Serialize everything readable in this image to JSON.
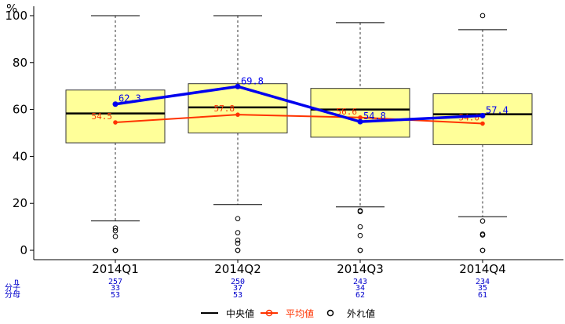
{
  "chart_data": {
    "type": "box",
    "y_unit": "%",
    "ylim": [
      -4,
      104
    ],
    "yticks": [
      0,
      20,
      40,
      60,
      80,
      100
    ],
    "categories": [
      "2014Q1",
      "2014Q2",
      "2014Q3",
      "2014Q4"
    ],
    "boxes": [
      {
        "whisker_low": 12.5,
        "q1": 45.8,
        "median": 58.3,
        "q3": 68.3,
        "whisker_high": 100,
        "outliers": [
          9.5,
          8.3,
          5.9,
          0,
          0,
          0
        ]
      },
      {
        "whisker_low": 19.5,
        "q1": 50.0,
        "median": 60.9,
        "q3": 71.0,
        "whisker_high": 100,
        "outliers": [
          13.5,
          7.5,
          4.3,
          3.0,
          0,
          0
        ]
      },
      {
        "whisker_low": 18.5,
        "q1": 48.2,
        "median": 60.0,
        "q3": 69.0,
        "whisker_high": 97,
        "outliers": [
          16.9,
          16.5,
          10.0,
          6.3,
          0,
          0
        ]
      },
      {
        "whisker_low": 14.3,
        "q1": 45.0,
        "median": 58.0,
        "q3": 66.7,
        "whisker_high": 94,
        "outliers": [
          100,
          12.5,
          6.9,
          6.5,
          0,
          0
        ]
      }
    ],
    "series": [
      {
        "name": "中央値",
        "color": "#000000"
      },
      {
        "name": "平均値",
        "color": "#ff3300",
        "values": [
          54.5,
          57.8,
          56.6,
          54.0
        ],
        "labels": [
          "54.5",
          "57.8",
          "56.6",
          "54.0"
        ]
      },
      {
        "name": "外れ値",
        "color": "#000000"
      }
    ],
    "rate_line": {
      "color": "#0000ee",
      "values": [
        62.3,
        69.8,
        54.8,
        57.4
      ],
      "labels": [
        "62.3",
        "69.8",
        "54.8",
        "57.4"
      ]
    },
    "stats_table": {
      "row_labels": [
        "n",
        "分子",
        "分母"
      ],
      "columns": [
        {
          "n": "257",
          "numerator": "33",
          "denominator": "53"
        },
        {
          "n": "250",
          "numerator": "37",
          "denominator": "53"
        },
        {
          "n": "243",
          "numerator": "34",
          "denominator": "62"
        },
        {
          "n": "234",
          "numerator": "35",
          "denominator": "61"
        }
      ]
    },
    "legend": {
      "position": "bottom"
    }
  }
}
